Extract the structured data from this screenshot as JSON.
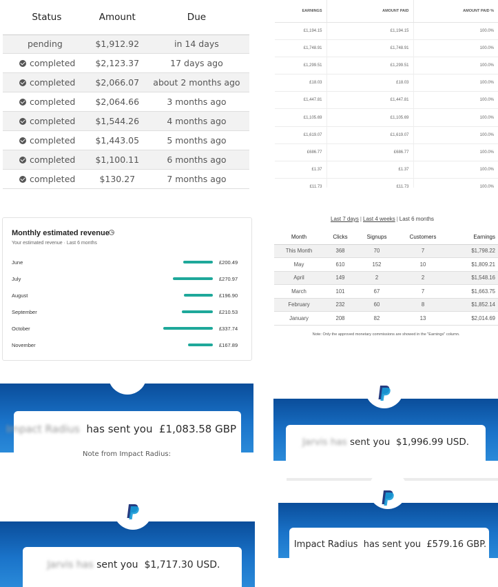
{
  "payouts_table": {
    "headers": [
      "Status",
      "Amount",
      "Due"
    ],
    "rows": [
      {
        "status": "pending",
        "amount": "$1,912.92",
        "due": "in 14 days"
      },
      {
        "status": "completed",
        "amount": "$2,123.37",
        "due": "17 days ago"
      },
      {
        "status": "completed",
        "amount": "$2,066.07",
        "due": "about 2 months ago"
      },
      {
        "status": "completed",
        "amount": "$2,064.66",
        "due": "3 months ago"
      },
      {
        "status": "completed",
        "amount": "$1,544.26",
        "due": "4 months ago"
      },
      {
        "status": "completed",
        "amount": "$1,443.05",
        "due": "5 months ago"
      },
      {
        "status": "completed",
        "amount": "$1,100.11",
        "due": "6 months ago"
      },
      {
        "status": "completed",
        "amount": "$130.27",
        "due": "7 months ago"
      }
    ]
  },
  "earnings_table": {
    "headers": [
      "EARNINGS",
      "AMOUNT PAID",
      "AMOUNT PAID %"
    ],
    "rows": [
      [
        "£1,194.15",
        "£1,194.15",
        "100.0%"
      ],
      [
        "£1,748.91",
        "£1,748.91",
        "100.0%"
      ],
      [
        "£1,299.51",
        "£1,299.51",
        "100.0%"
      ],
      [
        "£18.03",
        "£18.03",
        "100.0%"
      ],
      [
        "£1,447.81",
        "£1,447.81",
        "100.0%"
      ],
      [
        "£1,105.69",
        "£1,105.69",
        "100.0%"
      ],
      [
        "£1,619.07",
        "£1,619.07",
        "100.0%"
      ],
      [
        "£686.77",
        "£686.77",
        "100.0%"
      ],
      [
        "£1.37",
        "£1.37",
        "100.0%"
      ],
      [
        "£11.73",
        "£11.73",
        "100.0%"
      ]
    ]
  },
  "revenue_widget": {
    "title": "Monthly estimated revenue",
    "subtitle": "Your estimated revenue · Last 6 months",
    "accent_color": "#1ea89a",
    "rows": [
      {
        "month": "June",
        "value": 200.49,
        "label": "£200.49"
      },
      {
        "month": "July",
        "value": 270.97,
        "label": "£270.97"
      },
      {
        "month": "August",
        "value": 196.9,
        "label": "£196.90"
      },
      {
        "month": "September",
        "value": 210.53,
        "label": "£210.53"
      },
      {
        "month": "October",
        "value": 337.74,
        "label": "£337.74"
      },
      {
        "month": "November",
        "value": 167.89,
        "label": "£167.89"
      }
    ]
  },
  "clicks_table": {
    "filters": [
      "Last 7 days",
      "Last 4 weeks",
      "Last 6 months"
    ],
    "separator": "|",
    "headers": [
      "Month",
      "Clicks",
      "Signups",
      "Customers",
      "Earnings"
    ],
    "rows": [
      [
        "This Month",
        "368",
        "70",
        "7",
        "$1,798.22"
      ],
      [
        "May",
        "610",
        "152",
        "10",
        "$1,809.21"
      ],
      [
        "April",
        "149",
        "2",
        "2",
        "$1,548.16"
      ],
      [
        "March",
        "101",
        "67",
        "7",
        "$1,663.75"
      ],
      [
        "February",
        "232",
        "60",
        "8",
        "$1,852.14"
      ],
      [
        "January",
        "208",
        "82",
        "13",
        "$2,014.69"
      ]
    ],
    "note": "Note: Only the approved monetary commissions are showed in the \"Earnings\" column."
  },
  "payments": {
    "brand_colors": {
      "blue_dark": "#0a4d9a",
      "blue_light": "#2a8ad9",
      "logo_dark": "#253b80",
      "logo_light": "#179bd7"
    },
    "impact_gbp": {
      "sender": "Impact Radius",
      "text": "has sent you",
      "amount": "£1,083.58 GBP",
      "note": "Note from Impact Radius:"
    },
    "jarvis_usd_1": {
      "sender": "Jarvis",
      "text": "has",
      "text2": "sent you",
      "amount": "$1,996.99 USD."
    },
    "jarvis_usd_2": {
      "sender": "Jarvis",
      "text": "has",
      "text2": "sent you",
      "amount": "$1,717.30 USD."
    },
    "impact_gbp_2": {
      "sender": "Impact Radius",
      "text": "has sent you",
      "amount": "£579.16 GBP."
    }
  }
}
